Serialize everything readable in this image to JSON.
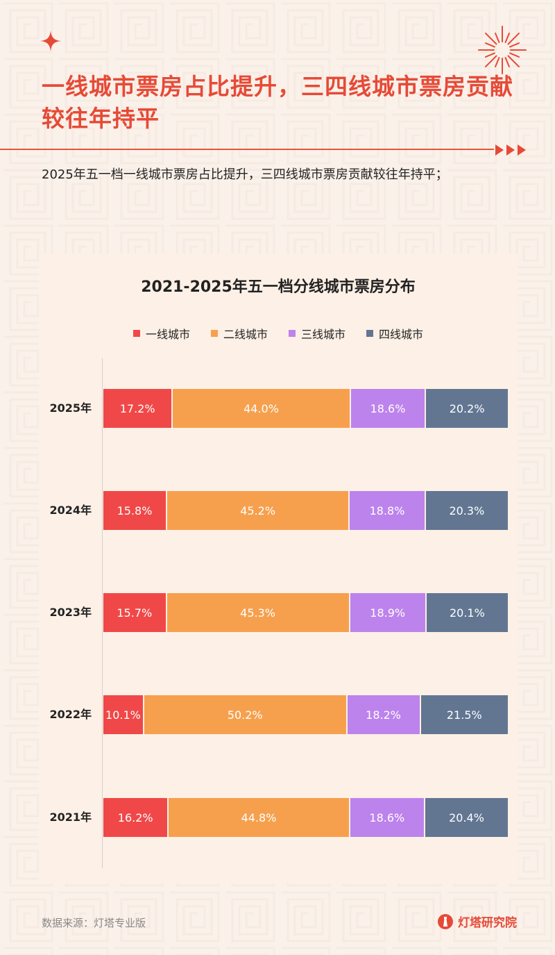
{
  "header": {
    "title": "一线城市票房占比提升，三四线城市票房贡献较往年持平",
    "subtitle": "2025年五一档一线城市票房占比提升，三四线城市票房贡献较往年持平；"
  },
  "icons": {
    "sparkle": "sparkle-icon",
    "firework": "firework-icon",
    "arrows": "triple-arrow-icon",
    "brand": "lighthouse-logo-icon"
  },
  "colors": {
    "accent": "#e64a37",
    "tier1": "#f04848",
    "tier2": "#f6a04e",
    "tier3": "#bd83ec",
    "tier4": "#627692"
  },
  "chart_data": {
    "type": "bar",
    "orientation": "horizontal",
    "stacked": true,
    "title": "2021-2025年五一档分线城市票房分布",
    "categories": [
      "2025年",
      "2024年",
      "2023年",
      "2022年",
      "2021年"
    ],
    "series": [
      {
        "name": "一线城市",
        "color": "#f04848",
        "values": [
          17.2,
          15.8,
          15.7,
          10.1,
          16.2
        ],
        "labels": [
          "17.2%",
          "15.8%",
          "15.7%",
          "10.1%",
          "16.2%"
        ]
      },
      {
        "name": "二线城市",
        "color": "#f6a04e",
        "values": [
          44.0,
          45.2,
          45.3,
          50.2,
          44.8
        ],
        "labels": [
          "44.0%",
          "45.2%",
          "45.3%",
          "50.2%",
          "44.8%"
        ]
      },
      {
        "name": "三线城市",
        "color": "#bd83ec",
        "values": [
          18.6,
          18.8,
          18.9,
          18.2,
          18.6
        ],
        "labels": [
          "18.6%",
          "18.8%",
          "18.9%",
          "18.2%",
          "18.6%"
        ]
      },
      {
        "name": "四线城市",
        "color": "#627692",
        "values": [
          20.2,
          20.3,
          20.1,
          21.5,
          20.4
        ],
        "labels": [
          "20.2%",
          "20.3%",
          "20.1%",
          "21.5%",
          "20.4%"
        ]
      }
    ],
    "xlim": [
      0,
      100
    ],
    "legend_position": "top",
    "grid": false
  },
  "footer": {
    "source": "数据来源：灯塔专业版",
    "brand": "灯塔研究院"
  }
}
